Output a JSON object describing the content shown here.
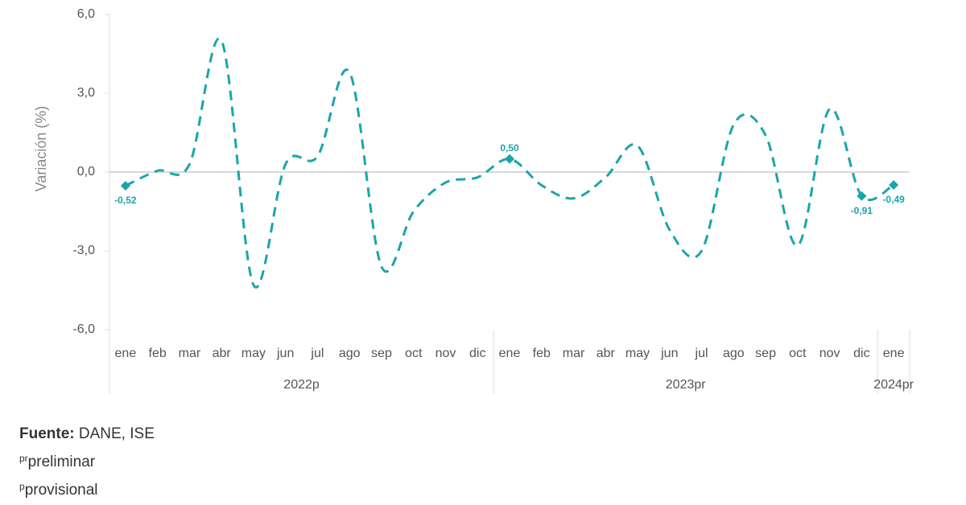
{
  "chart_data": {
    "type": "line",
    "y_label": "Variación (%)",
    "groups": [
      {
        "label": "2022p",
        "categories": [
          "ene",
          "feb",
          "mar",
          "abr",
          "may",
          "jun",
          "jul",
          "ago",
          "sep",
          "oct",
          "nov",
          "dic"
        ]
      },
      {
        "label": "2023pr",
        "categories": [
          "ene",
          "feb",
          "mar",
          "abr",
          "may",
          "jun",
          "jul",
          "ago",
          "sep",
          "oct",
          "nov",
          "dic"
        ]
      },
      {
        "label": "2024pr",
        "categories": [
          "ene"
        ]
      }
    ],
    "series": [
      {
        "color": "#1aa5aa",
        "values": [
          -0.52,
          0.05,
          0.3,
          5.0,
          -4.3,
          0.3,
          0.6,
          3.8,
          -3.6,
          -1.5,
          -0.4,
          -0.2,
          0.5,
          -0.5,
          -1.0,
          -0.2,
          1.0,
          -2.2,
          -3.0,
          1.8,
          1.4,
          -2.8,
          2.4,
          -0.91,
          -0.49
        ],
        "value_labels": [
          "-0,52",
          null,
          null,
          null,
          null,
          null,
          null,
          null,
          null,
          null,
          null,
          null,
          "0,50",
          null,
          null,
          null,
          null,
          null,
          null,
          null,
          null,
          null,
          null,
          "-0,91",
          "-0,49"
        ]
      }
    ],
    "ylim": [
      -6,
      6
    ],
    "yticks": [
      {
        "value": 6,
        "label": "6,0"
      },
      {
        "value": 3,
        "label": "3,0"
      },
      {
        "value": 0,
        "label": "0,0"
      },
      {
        "value": -3,
        "label": "-3,0"
      },
      {
        "value": -6,
        "label": "-6,0"
      }
    ],
    "grid": false
  },
  "notes": {
    "source_label": "Fuente:",
    "source_text": "DANE, ISE",
    "notes": [
      {
        "mark": "pr",
        "text": "preliminar"
      },
      {
        "mark": "p",
        "text": "provisional"
      }
    ]
  }
}
